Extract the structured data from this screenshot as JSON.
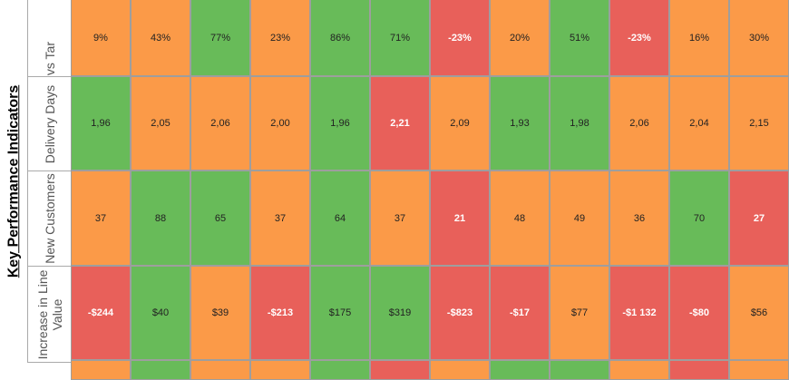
{
  "title": "Key Performance Indicators",
  "row_labels": [
    "Sales vs Tar",
    "Delivery Days",
    "New Customers",
    "Increase in Line Value"
  ],
  "colors": {
    "good": "#68bb59",
    "warning": "#fb9a48",
    "bad": "#e8605a",
    "grid": "#9e9e9e"
  },
  "rows": [
    {
      "label": "Sales vs Tar",
      "cells": [
        {
          "v": "9%",
          "s": "o"
        },
        {
          "v": "43%",
          "s": "o"
        },
        {
          "v": "77%",
          "s": "g"
        },
        {
          "v": "23%",
          "s": "o"
        },
        {
          "v": "86%",
          "s": "g"
        },
        {
          "v": "71%",
          "s": "g"
        },
        {
          "v": "-23%",
          "s": "r"
        },
        {
          "v": "20%",
          "s": "o"
        },
        {
          "v": "51%",
          "s": "g"
        },
        {
          "v": "-23%",
          "s": "r"
        },
        {
          "v": "16%",
          "s": "o"
        },
        {
          "v": "30%",
          "s": "o"
        }
      ]
    },
    {
      "label": "Delivery Days",
      "cells": [
        {
          "v": "1,96",
          "s": "g"
        },
        {
          "v": "2,05",
          "s": "o"
        },
        {
          "v": "2,06",
          "s": "o"
        },
        {
          "v": "2,00",
          "s": "o"
        },
        {
          "v": "1,96",
          "s": "g"
        },
        {
          "v": "2,21",
          "s": "r"
        },
        {
          "v": "2,09",
          "s": "o"
        },
        {
          "v": "1,93",
          "s": "g"
        },
        {
          "v": "1,98",
          "s": "g"
        },
        {
          "v": "2,06",
          "s": "o"
        },
        {
          "v": "2,04",
          "s": "o"
        },
        {
          "v": "2,15",
          "s": "o"
        }
      ]
    },
    {
      "label": "New Customers",
      "cells": [
        {
          "v": "37",
          "s": "o"
        },
        {
          "v": "88",
          "s": "g"
        },
        {
          "v": "65",
          "s": "g"
        },
        {
          "v": "37",
          "s": "o"
        },
        {
          "v": "64",
          "s": "g"
        },
        {
          "v": "37",
          "s": "o"
        },
        {
          "v": "21",
          "s": "r"
        },
        {
          "v": "48",
          "s": "o"
        },
        {
          "v": "49",
          "s": "o"
        },
        {
          "v": "36",
          "s": "o"
        },
        {
          "v": "70",
          "s": "g"
        },
        {
          "v": "27",
          "s": "r"
        }
      ]
    },
    {
      "label": "Increase in Line Value",
      "cells": [
        {
          "v": "-$244",
          "s": "r"
        },
        {
          "v": "$40",
          "s": "g"
        },
        {
          "v": "$39",
          "s": "o"
        },
        {
          "v": "-$213",
          "s": "r"
        },
        {
          "v": "$175",
          "s": "g"
        },
        {
          "v": "$319",
          "s": "g"
        },
        {
          "v": "-$823",
          "s": "r"
        },
        {
          "v": "-$17",
          "s": "r"
        },
        {
          "v": "$77",
          "s": "o"
        },
        {
          "v": "-$1 132",
          "s": "r"
        },
        {
          "v": "-$80",
          "s": "r"
        },
        {
          "v": "$56",
          "s": "o"
        }
      ]
    }
  ],
  "partial_row": [
    "o",
    "g",
    "o",
    "o",
    "g",
    "r",
    "o",
    "g",
    "g",
    "o",
    "r",
    "o"
  ]
}
